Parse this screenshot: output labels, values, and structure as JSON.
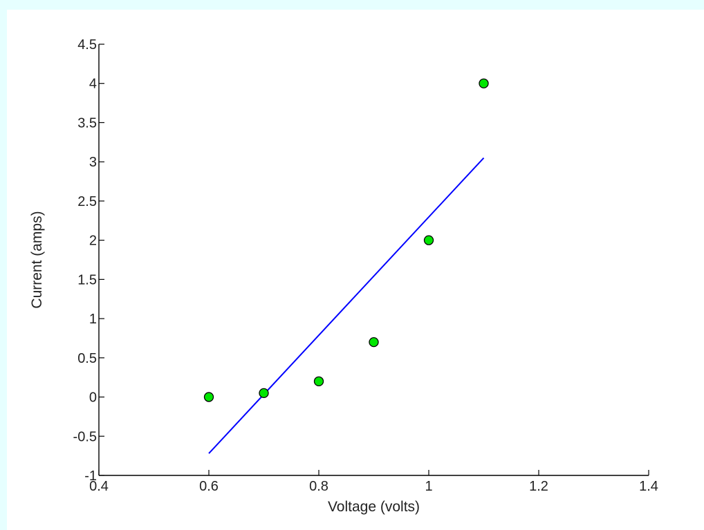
{
  "chart_data": {
    "type": "scatter",
    "title": "",
    "xlabel": "Voltage (volts)",
    "ylabel": "Current (amps)",
    "xlim": [
      0.4,
      1.4
    ],
    "ylim": [
      -1,
      4.5
    ],
    "grid": false,
    "x_ticks": [
      "0.4",
      "0.6",
      "0.8",
      "1",
      "1.2",
      "1.4"
    ],
    "y_ticks": [
      "-1",
      "-0.5",
      "0",
      "0.5",
      "1",
      "1.5",
      "2",
      "2.5",
      "3",
      "3.5",
      "4",
      "4.5"
    ],
    "series": [
      {
        "type": "scatter",
        "marker": "circle",
        "color": "#00e600",
        "edge_color": "#000000",
        "x": [
          0.6,
          0.7,
          0.8,
          0.9,
          1.0,
          1.1
        ],
        "y": [
          0.0,
          0.05,
          0.2,
          0.7,
          2.0,
          4.0
        ]
      },
      {
        "type": "line",
        "color": "#0000ff",
        "x": [
          0.6,
          1.1
        ],
        "y": [
          -0.72,
          3.05
        ]
      }
    ]
  }
}
